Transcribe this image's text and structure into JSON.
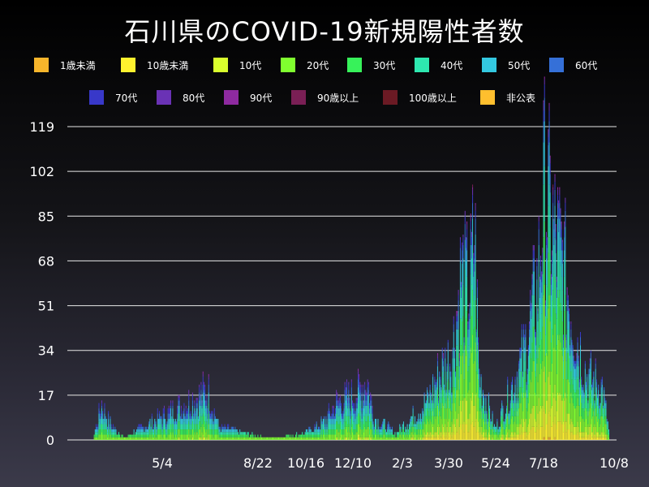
{
  "chart_data": {
    "type": "bar",
    "stacked": true,
    "title": "石川県のCOVID-19新規陽性者数",
    "xlabel": "",
    "ylabel": "",
    "ylim": [
      0,
      119
    ],
    "yticks": [
      0,
      17,
      34,
      51,
      68,
      85,
      102,
      119
    ],
    "xtick_labels": [
      "5/4",
      "8/22",
      "10/16",
      "12/10",
      "2/3",
      "3/30",
      "5/24",
      "7/18",
      "10/8"
    ],
    "grid": "horizontal",
    "legend_placement": "top",
    "series": [
      {
        "name": "1歳未満",
        "color": "#f7b52b"
      },
      {
        "name": "10歳未満",
        "color": "#fff22e"
      },
      {
        "name": "10代",
        "color": "#d9ff2d"
      },
      {
        "name": "20代",
        "color": "#80ff2f"
      },
      {
        "name": "30代",
        "color": "#37f25a"
      },
      {
        "name": "40代",
        "color": "#2ee8b0"
      },
      {
        "name": "50代",
        "color": "#33c8e0"
      },
      {
        "name": "60代",
        "color": "#3570d8"
      },
      {
        "name": "70代",
        "color": "#3838c9"
      },
      {
        "name": "80代",
        "color": "#6a32b5"
      },
      {
        "name": "90代",
        "color": "#8e2aa0"
      },
      {
        "name": "90歳以上",
        "color": "#7a1f55"
      },
      {
        "name": "100歳以上",
        "color": "#6b1a24"
      },
      {
        "name": "非公表",
        "color": "#ffbf2e"
      }
    ],
    "daily_totals_approx": [
      {
        "x": "4/11",
        "y": 1
      },
      {
        "x": "4/20",
        "y": 17
      },
      {
        "x": "4/24",
        "y": 12
      },
      {
        "x": "5/4",
        "y": 5
      },
      {
        "x": "5/14",
        "y": 1
      },
      {
        "x": "8/1",
        "y": 21
      },
      {
        "x": "8/10",
        "y": 24
      },
      {
        "x": "8/22",
        "y": 6
      },
      {
        "x": "9/20",
        "y": 3
      },
      {
        "x": "10/16",
        "y": 1
      },
      {
        "x": "11/20",
        "y": 3
      },
      {
        "x": "12/10",
        "y": 8
      },
      {
        "x": "12/25",
        "y": 18
      },
      {
        "x": "1/15",
        "y": 22
      },
      {
        "x": "1/25",
        "y": 29
      },
      {
        "x": "2/3",
        "y": 10
      },
      {
        "x": "2/25",
        "y": 3
      },
      {
        "x": "3/30",
        "y": 18
      },
      {
        "x": "4/10",
        "y": 30
      },
      {
        "x": "4/25",
        "y": 40
      },
      {
        "x": "5/5",
        "y": 78
      },
      {
        "x": "5/14",
        "y": 70
      },
      {
        "x": "5/19",
        "y": 100
      },
      {
        "x": "5/24",
        "y": 30
      },
      {
        "x": "6/10",
        "y": 5
      },
      {
        "x": "7/10",
        "y": 40
      },
      {
        "x": "7/25",
        "y": 75
      },
      {
        "x": "8/1",
        "y": 119
      },
      {
        "x": "8/5",
        "y": 110
      },
      {
        "x": "8/12",
        "y": 95
      },
      {
        "x": "8/20",
        "y": 85
      },
      {
        "x": "9/1",
        "y": 55
      },
      {
        "x": "9/15",
        "y": 30
      },
      {
        "x": "10/1",
        "y": 25
      },
      {
        "x": "10/8",
        "y": 5
      }
    ]
  }
}
